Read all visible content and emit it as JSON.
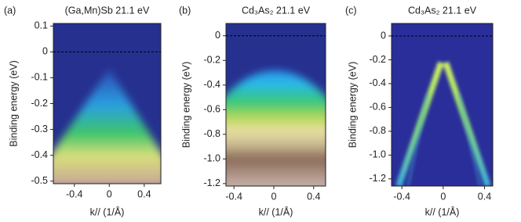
{
  "chart_data": [
    {
      "type": "heatmap",
      "panel_label": "(a)",
      "title": "(Ga,Mn)Sb 21.1 eV",
      "xlabel": "k// (1/Å)",
      "ylabel": "Binding energy (eV)",
      "xlim": [
        -0.64,
        0.59
      ],
      "ylim": [
        -0.51,
        0.11
      ],
      "xticks": [
        -0.4,
        0,
        0.4
      ],
      "yticks": [
        0.1,
        0,
        -0.1,
        -0.2,
        -0.3,
        -0.4,
        -0.5
      ]
    },
    {
      "type": "heatmap",
      "panel_label": "(b)",
      "title": "Cd₃As₂ 21.1 eV",
      "xlabel": "k// (1/Å)",
      "ylabel": "Binding energy (eV)",
      "xlim": [
        -0.48,
        0.52
      ],
      "ylim": [
        -1.22,
        0.1
      ],
      "xticks": [
        -0.4,
        0,
        0.4
      ],
      "yticks": [
        0,
        -0.2,
        -0.4,
        -0.6,
        -0.8,
        {
          "value": -1,
          "label": "-1.0"
        },
        -1.2
      ]
    },
    {
      "type": "heatmap",
      "panel_label": "(c)",
      "title": "Cd₃As₂ 21.1 eV",
      "xlabel": "k// (1/Å)",
      "ylabel": "Binding energy (eV)",
      "xlim": [
        -0.5,
        0.48
      ],
      "ylim": [
        -1.26,
        0.105
      ],
      "xticks": [
        -0.4,
        0,
        0.4
      ],
      "yticks": [
        0,
        -0.2,
        -0.4,
        -0.6,
        -0.8,
        {
          "value": -1,
          "label": "-1.0"
        },
        -1.2
      ]
    }
  ]
}
